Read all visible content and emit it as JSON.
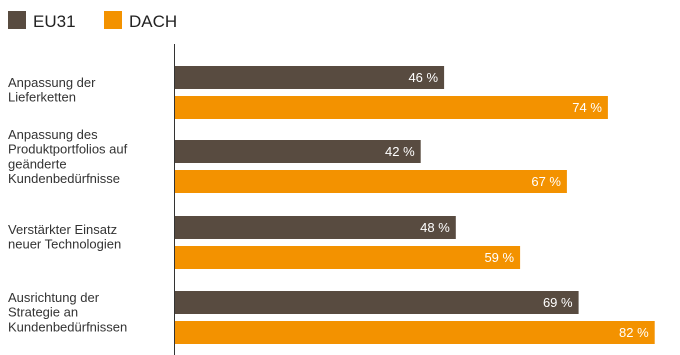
{
  "chart_data": {
    "type": "bar",
    "orientation": "horizontal",
    "title": "",
    "xlabel": "",
    "ylabel": "",
    "xlim": [
      0,
      100
    ],
    "grid": false,
    "legend_position": "top-left",
    "categories": [
      [
        "Anpassung der",
        "Lieferketten"
      ],
      [
        "Anpassung des",
        "Produktportfolios auf",
        "geänderte",
        "Kundenbedürfnisse"
      ],
      [
        "Verstärkter Einsatz",
        "neuer Technologien"
      ],
      [
        "Ausrichtung der",
        "Strategie an",
        "Kundenbedürfnissen"
      ]
    ],
    "series": [
      {
        "name": "EU31",
        "color": "#584b40",
        "values": [
          46,
          42,
          48,
          69
        ],
        "labels": [
          "46 %",
          "42 %",
          "48 %",
          "69 %"
        ]
      },
      {
        "name": "DACH",
        "color": "#f39200",
        "values": [
          74,
          67,
          59,
          82
        ],
        "labels": [
          "74 %",
          "67 %",
          "59 %",
          "82 %"
        ]
      }
    ]
  }
}
